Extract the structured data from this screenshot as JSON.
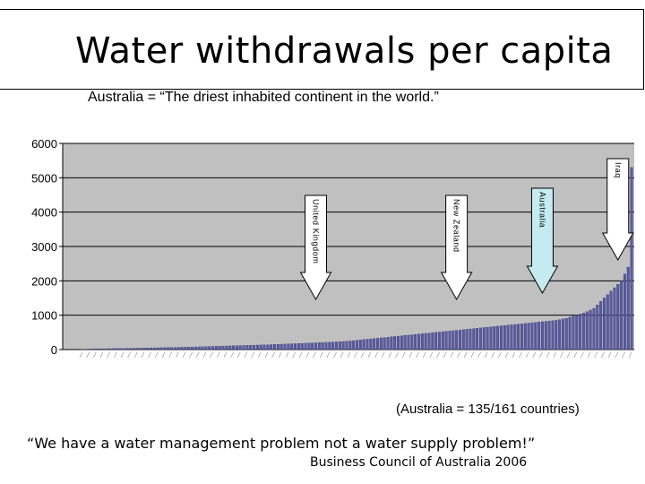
{
  "slide": {
    "title": "Water withdrawals per capita",
    "subtitle": "Australia  =  “The driest inhabited continent in the world.”",
    "countries_note": "(Australia = 135/161 countries)",
    "quote": "“We have a water management problem not a water supply problem!”",
    "attribution": "Business Council of Australia 2006"
  },
  "chart_data": {
    "type": "bar",
    "title": "",
    "xlabel": "",
    "ylabel": "",
    "ylim": [
      0,
      6000
    ],
    "yticks": [
      0,
      1000,
      2000,
      3000,
      4000,
      5000,
      6000
    ],
    "grid": true,
    "count": 161,
    "values": [
      5,
      10,
      15,
      18,
      20,
      22,
      24,
      25,
      27,
      28,
      30,
      32,
      33,
      35,
      36,
      38,
      40,
      42,
      44,
      46,
      48,
      50,
      52,
      54,
      56,
      58,
      60,
      62,
      65,
      67,
      70,
      72,
      75,
      78,
      80,
      83,
      86,
      89,
      92,
      95,
      98,
      101,
      104,
      107,
      110,
      113,
      116,
      119,
      122,
      125,
      128,
      131,
      134,
      137,
      140,
      144,
      148,
      152,
      156,
      160,
      164,
      168,
      172,
      176,
      180,
      184,
      188,
      192,
      196,
      200,
      205,
      210,
      215,
      220,
      225,
      230,
      235,
      240,
      250,
      260,
      270,
      280,
      290,
      300,
      310,
      320,
      330,
      340,
      350,
      360,
      370,
      380,
      390,
      400,
      410,
      420,
      430,
      440,
      450,
      460,
      470,
      480,
      490,
      500,
      510,
      520,
      530,
      540,
      550,
      560,
      570,
      580,
      590,
      600,
      610,
      620,
      630,
      640,
      650,
      660,
      670,
      680,
      690,
      700,
      710,
      720,
      730,
      740,
      750,
      760,
      770,
      780,
      790,
      800,
      810,
      820,
      830,
      840,
      850,
      870,
      890,
      910,
      940,
      970,
      1000,
      1030,
      1060,
      1100,
      1150,
      1200,
      1300,
      1400,
      1500,
      1600,
      1700,
      1800,
      1900,
      2000,
      2200,
      2400,
      5300
    ],
    "bar_color": "#5a5aa0",
    "plot_background": "#c0c0c0",
    "annotations": [
      {
        "label": "United Kingdom",
        "index": 68,
        "fill": "#ffffff"
      },
      {
        "label": "New Zealand",
        "index": 109,
        "fill": "#ffffff"
      },
      {
        "label": "Australia",
        "index": 134,
        "fill": "#c4ecf0"
      },
      {
        "label": "Iraq",
        "index": 156,
        "fill": "#ffffff"
      }
    ]
  }
}
